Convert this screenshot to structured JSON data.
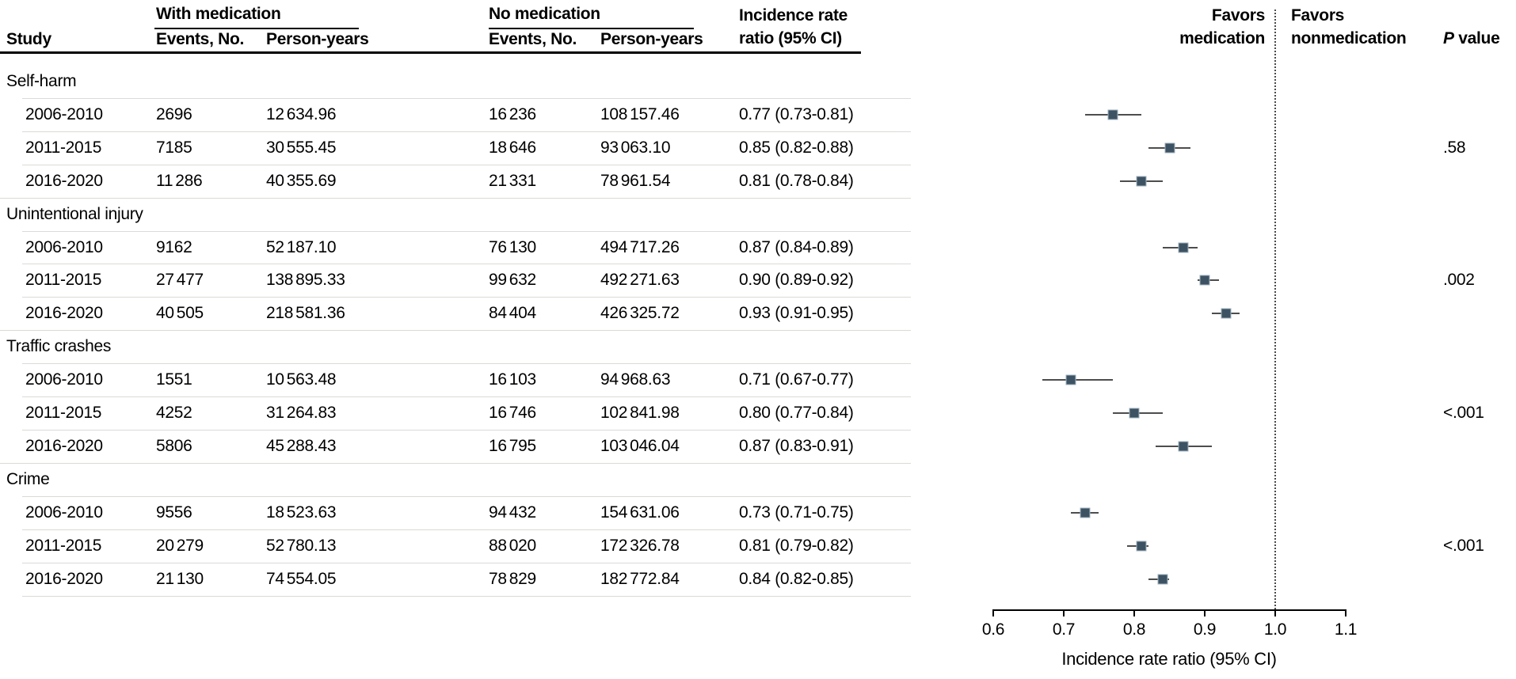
{
  "header": {
    "study": "Study",
    "group_med": "With medication",
    "group_no": "No medication",
    "events": "Events, No.",
    "person_years": "Person-years",
    "irr_line1": "Incidence rate",
    "irr_line2": "ratio (95% CI)",
    "favors_med_line1": "Favors",
    "favors_med_line2": "medication",
    "favors_non_line1": "Favors",
    "favors_non_line2": "nonmedication",
    "p_header_italic": "P",
    "p_header_rest": " value"
  },
  "table": {
    "sections": [
      {
        "label": "Self-harm",
        "p_value": ".58",
        "rows": [
          {
            "study": "2006-2010",
            "events_med": "2696",
            "py_med": "12 634.96",
            "events_no": "16 236",
            "py_no": "108 157.46",
            "irr_text": "0.77 (0.73-0.81)"
          },
          {
            "study": "2011-2015",
            "events_med": "7185",
            "py_med": "30 555.45",
            "events_no": "18 646",
            "py_no": "93 063.10",
            "irr_text": "0.85 (0.82-0.88)"
          },
          {
            "study": "2016-2020",
            "events_med": "11 286",
            "py_med": "40 355.69",
            "events_no": "21 331",
            "py_no": "78 961.54",
            "irr_text": "0.81 (0.78-0.84)"
          }
        ]
      },
      {
        "label": "Unintentional injury",
        "p_value": ".002",
        "rows": [
          {
            "study": "2006-2010",
            "events_med": "9162",
            "py_med": "52 187.10",
            "events_no": "76 130",
            "py_no": "494 717.26",
            "irr_text": "0.87 (0.84-0.89)"
          },
          {
            "study": "2011-2015",
            "events_med": "27 477",
            "py_med": "138 895.33",
            "events_no": "99 632",
            "py_no": "492 271.63",
            "irr_text": "0.90 (0.89-0.92)"
          },
          {
            "study": "2016-2020",
            "events_med": "40 505",
            "py_med": "218 581.36",
            "events_no": "84 404",
            "py_no": "426 325.72",
            "irr_text": "0.93 (0.91-0.95)"
          }
        ]
      },
      {
        "label": "Traffic crashes",
        "p_value": "<.001",
        "rows": [
          {
            "study": "2006-2010",
            "events_med": "1551",
            "py_med": "10 563.48",
            "events_no": "16 103",
            "py_no": "94 968.63",
            "irr_text": "0.71 (0.67-0.77)"
          },
          {
            "study": "2011-2015",
            "events_med": "4252",
            "py_med": "31 264.83",
            "events_no": "16 746",
            "py_no": "102 841.98",
            "irr_text": "0.80 (0.77-0.84)"
          },
          {
            "study": "2016-2020",
            "events_med": "5806",
            "py_med": "45 288.43",
            "events_no": "16 795",
            "py_no": "103 046.04",
            "irr_text": "0.87 (0.83-0.91)"
          }
        ]
      },
      {
        "label": "Crime",
        "p_value": "<.001",
        "rows": [
          {
            "study": "2006-2010",
            "events_med": "9556",
            "py_med": "18 523.63",
            "events_no": "94 432",
            "py_no": "154 631.06",
            "irr_text": "0.73 (0.71-0.75)"
          },
          {
            "study": "2011-2015",
            "events_med": "20 279",
            "py_med": "52 780.13",
            "events_no": "88 020",
            "py_no": "172 326.78",
            "irr_text": "0.81 (0.79-0.82)"
          },
          {
            "study": "2016-2020",
            "events_med": "21 130",
            "py_med": "74 554.05",
            "events_no": "78 829",
            "py_no": "182 772.84",
            "irr_text": "0.84 (0.82-0.85)"
          }
        ]
      }
    ]
  },
  "chart_data": {
    "type": "scatter",
    "subtype": "forest-plot",
    "title": "",
    "xlabel": "Incidence rate ratio (95% CI)",
    "xlim": [
      0.6,
      1.1
    ],
    "xticks": [
      0.6,
      0.7,
      0.8,
      0.9,
      1.0,
      1.1
    ],
    "reference_line": 1.0,
    "left_region_label": "Favors medication",
    "right_region_label": "Favors nonmedication",
    "marker_color": "#3d5363",
    "groups": [
      {
        "name": "Self-harm",
        "p_value": ".58",
        "points": [
          {
            "label": "2006-2010",
            "irr": 0.77,
            "ci_low": 0.73,
            "ci_high": 0.81
          },
          {
            "label": "2011-2015",
            "irr": 0.85,
            "ci_low": 0.82,
            "ci_high": 0.88
          },
          {
            "label": "2016-2020",
            "irr": 0.81,
            "ci_low": 0.78,
            "ci_high": 0.84
          }
        ]
      },
      {
        "name": "Unintentional injury",
        "p_value": ".002",
        "points": [
          {
            "label": "2006-2010",
            "irr": 0.87,
            "ci_low": 0.84,
            "ci_high": 0.89
          },
          {
            "label": "2011-2015",
            "irr": 0.9,
            "ci_low": 0.89,
            "ci_high": 0.92
          },
          {
            "label": "2016-2020",
            "irr": 0.93,
            "ci_low": 0.91,
            "ci_high": 0.95
          }
        ]
      },
      {
        "name": "Traffic crashes",
        "p_value": "<.001",
        "points": [
          {
            "label": "2006-2010",
            "irr": 0.71,
            "ci_low": 0.67,
            "ci_high": 0.77
          },
          {
            "label": "2011-2015",
            "irr": 0.8,
            "ci_low": 0.77,
            "ci_high": 0.84
          },
          {
            "label": "2016-2020",
            "irr": 0.87,
            "ci_low": 0.83,
            "ci_high": 0.91
          }
        ]
      },
      {
        "name": "Crime",
        "p_value": "<.001",
        "points": [
          {
            "label": "2006-2010",
            "irr": 0.73,
            "ci_low": 0.71,
            "ci_high": 0.75
          },
          {
            "label": "2011-2015",
            "irr": 0.81,
            "ci_low": 0.79,
            "ci_high": 0.82
          },
          {
            "label": "2016-2020",
            "irr": 0.84,
            "ci_low": 0.82,
            "ci_high": 0.85
          }
        ]
      }
    ]
  }
}
